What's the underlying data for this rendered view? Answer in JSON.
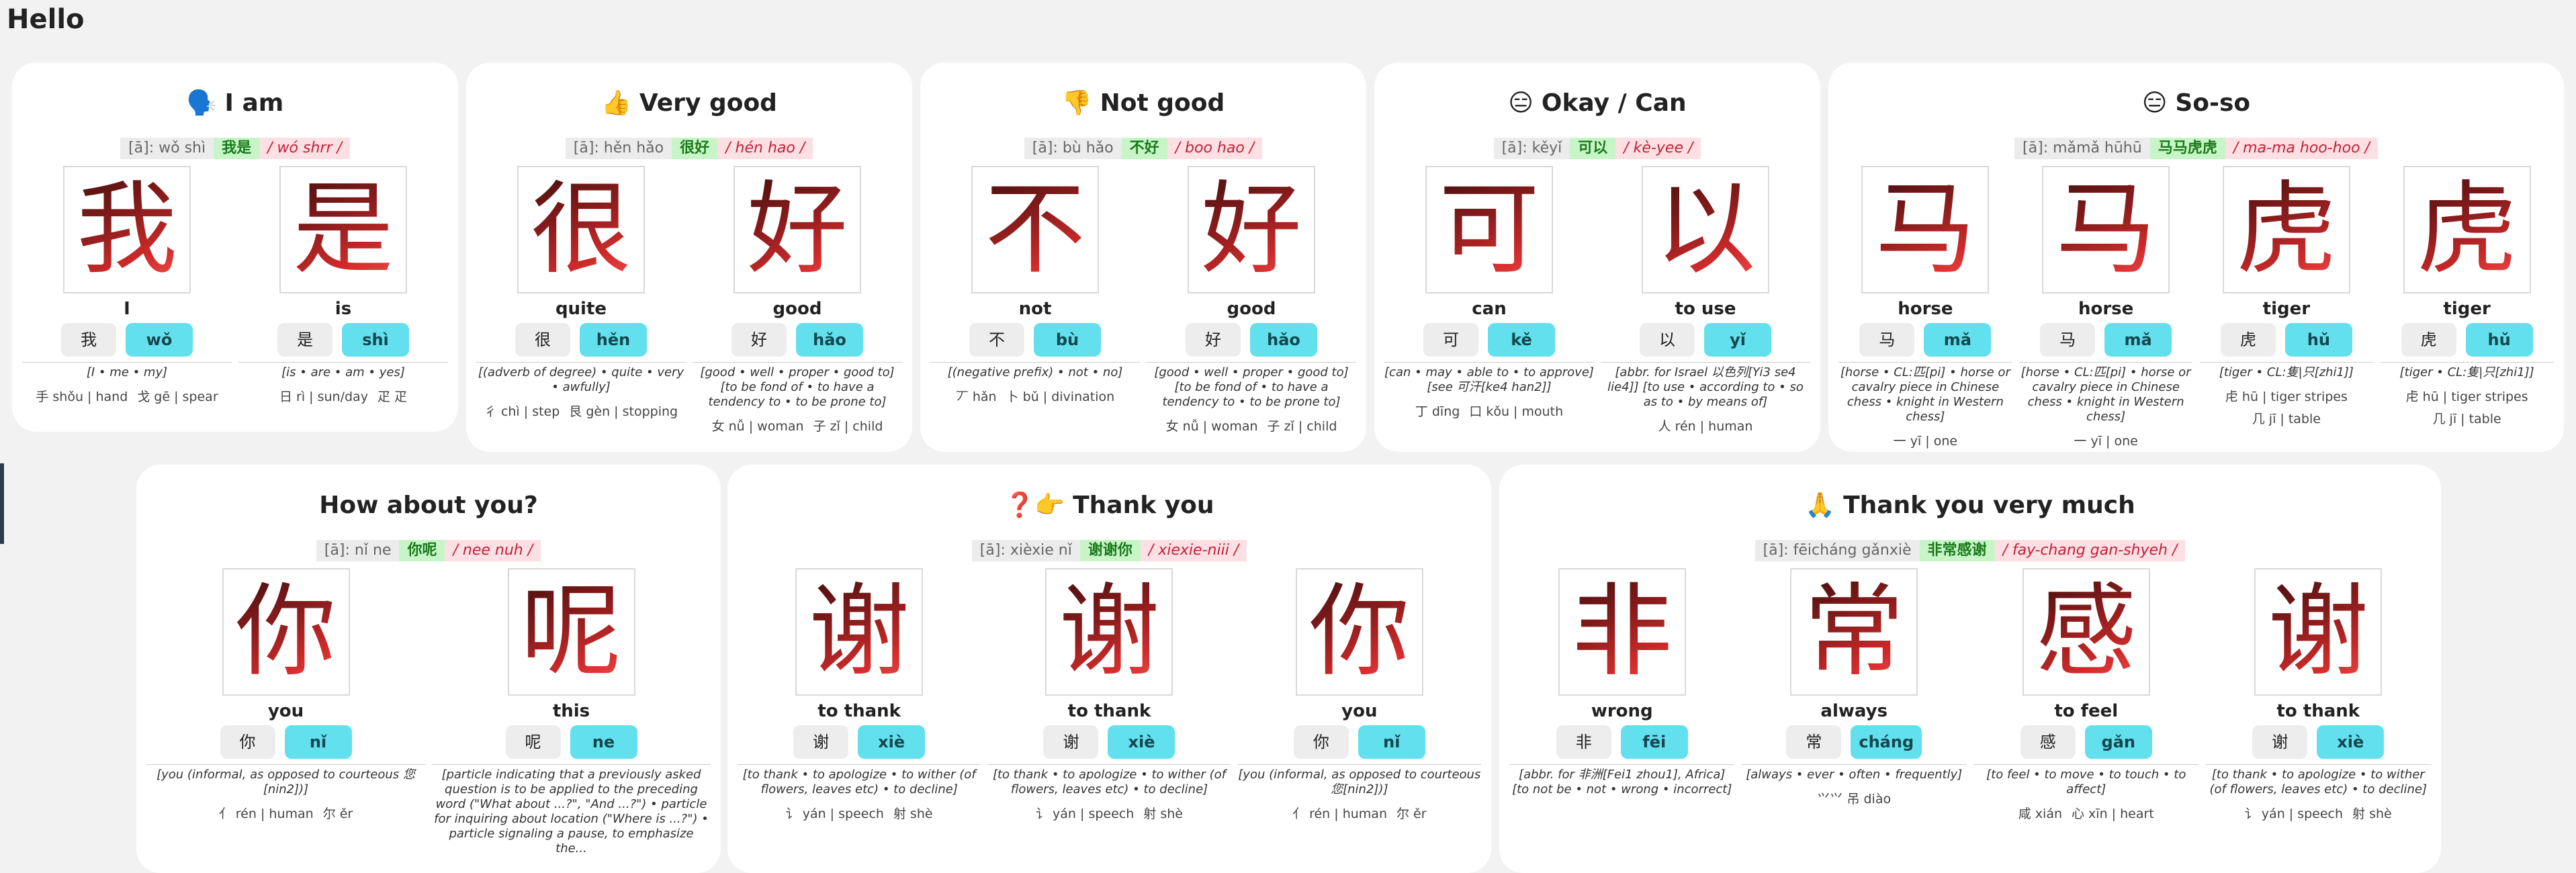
{
  "title": "Hello",
  "cards": [
    {
      "emoji": "🗣️",
      "title": "I am",
      "phrase": {
        "pinyin": "[ā]: wǒ shì",
        "hanzi": "我是",
        "sound": "/ wó shrr /"
      },
      "chars": [
        {
          "hanzi": "我",
          "meaning": "I",
          "pinyin": "wǒ",
          "def": "[I • me • my]",
          "radicals": [
            "手 shǒu | hand",
            "戈 gē | spear"
          ]
        },
        {
          "hanzi": "是",
          "meaning": "is",
          "pinyin": "shì",
          "def": "[is • are • am • yes]",
          "radicals": [
            "日 rì | sun/day",
            "疋 疋"
          ]
        }
      ]
    },
    {
      "emoji": "👍",
      "title": "Very good",
      "phrase": {
        "pinyin": "[ā]: hěn hǎo",
        "hanzi": "很好",
        "sound": "/ hén hao /"
      },
      "chars": [
        {
          "hanzi": "很",
          "meaning": "quite",
          "pinyin": "hěn",
          "def": "[(adverb of degree) • quite • very • awfully]",
          "radicals": [
            "彳 chì | step",
            "艮 gèn | stopping"
          ]
        },
        {
          "hanzi": "好",
          "meaning": "good",
          "pinyin": "hǎo",
          "def": "[good • well • proper • good to] [to be fond of • to have a tendency to • to be prone to]",
          "radicals": [
            "女 nǚ | woman",
            "子 zǐ | child"
          ]
        }
      ]
    },
    {
      "emoji": "👎",
      "title": "Not good",
      "phrase": {
        "pinyin": "[ā]: bù hǎo",
        "hanzi": "不好",
        "sound": "/ boo hao /"
      },
      "chars": [
        {
          "hanzi": "不",
          "meaning": "not",
          "pinyin": "bù",
          "def": "[(negative prefix) • not • no]",
          "radicals": [
            "丆 hǎn",
            "卜 bǔ | divination"
          ]
        },
        {
          "hanzi": "好",
          "meaning": "good",
          "pinyin": "hǎo",
          "def": "[good • well • proper • good to] [to be fond of • to have a tendency to • to be prone to]",
          "radicals": [
            "女 nǚ | woman",
            "子 zǐ | child"
          ]
        }
      ]
    },
    {
      "emoji": "😑",
      "title": "Okay / Can",
      "phrase": {
        "pinyin": "[ā]: kěyǐ",
        "hanzi": "可以",
        "sound": "/ kè-yee /"
      },
      "chars": [
        {
          "hanzi": "可",
          "meaning": "can",
          "pinyin": "kě",
          "def": "[can • may • able to • to approve] [see 可汗[ke4 han2]]",
          "radicals": [
            "丁 dīng",
            "口 kǒu | mouth"
          ]
        },
        {
          "hanzi": "以",
          "meaning": "to use",
          "pinyin": "yǐ",
          "def": "[abbr. for Israel 以色列[Yi3 se4 lie4]] [to use • according to • so as to • by means of]",
          "radicals": [
            "人 rén | human"
          ]
        }
      ]
    },
    {
      "emoji": "😑",
      "title": "So-so",
      "phrase": {
        "pinyin": "[ā]: mǎmǎ hūhū",
        "hanzi": "马马虎虎",
        "sound": "/ ma-ma hoo-hoo /"
      },
      "chars": [
        {
          "hanzi": "马",
          "meaning": "horse",
          "pinyin": "mǎ",
          "def": "[horse • CL:匹[pi] • horse or cavalry piece in Chinese chess • knight in Western chess]",
          "radicals": [
            "一 yī | one"
          ]
        },
        {
          "hanzi": "马",
          "meaning": "horse",
          "pinyin": "mǎ",
          "def": "[horse • CL:匹[pi] • horse or cavalry piece in Chinese chess • knight in Western chess]",
          "radicals": [
            "一 yī | one"
          ]
        },
        {
          "hanzi": "虎",
          "meaning": "tiger",
          "pinyin": "hǔ",
          "def": "[tiger • CL:隻|只[zhi1]]",
          "radicals": [
            "虍 hū | tiger stripes",
            "几 jī | table"
          ]
        },
        {
          "hanzi": "虎",
          "meaning": "tiger",
          "pinyin": "hǔ",
          "def": "[tiger • CL:隻|只[zhi1]]",
          "radicals": [
            "虍 hū | tiger stripes",
            "几 jī | table"
          ]
        }
      ]
    },
    {
      "emoji": "",
      "title": "How about you?",
      "phrase": {
        "pinyin": "[ā]: nǐ ne",
        "hanzi": "你呢",
        "sound": "/ nee nuh /"
      },
      "chars": [
        {
          "hanzi": "你",
          "meaning": "you",
          "pinyin": "nǐ",
          "def": "[you (informal, as opposed to courteous 您[nin2])]",
          "radicals": [
            "亻 rén | human",
            "尔 ěr"
          ]
        },
        {
          "hanzi": "呢",
          "meaning": "this",
          "pinyin": "ne",
          "def": "[particle indicating that a previously asked question is to be applied to the preceding word (\"What about ...?\", \"And ...?\") • particle for inquiring about location (\"Where is ...?\") • particle signaling a pause, to emphasize the...",
          "radicals": []
        }
      ]
    },
    {
      "emoji": "❓👉",
      "title": "Thank you",
      "phrase": {
        "pinyin": "[ā]: xièxie nǐ",
        "hanzi": "谢谢你",
        "sound": "/ xiexie-niii /"
      },
      "chars": [
        {
          "hanzi": "谢",
          "meaning": "to thank",
          "pinyin": "xiè",
          "def": "[to thank • to apologize • to wither (of flowers, leaves etc) • to decline]",
          "radicals": [
            "讠 yán | speech",
            "射 shè"
          ]
        },
        {
          "hanzi": "谢",
          "meaning": "to thank",
          "pinyin": "xiè",
          "def": "[to thank • to apologize • to wither (of flowers, leaves etc) • to decline]",
          "radicals": [
            "讠 yán | speech",
            "射 shè"
          ]
        },
        {
          "hanzi": "你",
          "meaning": "you",
          "pinyin": "nǐ",
          "def": "[you (informal, as opposed to courteous 您[nin2])]",
          "radicals": [
            "亻 rén | human",
            "尔 ěr"
          ]
        }
      ]
    },
    {
      "emoji": "🙏",
      "title": "Thank you very much",
      "phrase": {
        "pinyin": "[ā]: fēicháng gǎnxiè",
        "hanzi": "非常感谢",
        "sound": "/ fay-chang gan-shyeh /"
      },
      "chars": [
        {
          "hanzi": "非",
          "meaning": "wrong",
          "pinyin": "fēi",
          "def": "[abbr. for 非洲[Fei1 zhou1], Africa] [to not be • not • wrong • incorrect]",
          "radicals": []
        },
        {
          "hanzi": "常",
          "meaning": "always",
          "pinyin": "cháng",
          "def": "[always • ever • often • frequently]",
          "radicals": [
            "⺍⺍ 吊 diào"
          ]
        },
        {
          "hanzi": "感",
          "meaning": "to feel",
          "pinyin": "gǎn",
          "def": "[to feel • to move • to touch • to affect]",
          "radicals": [
            "咸 xián",
            "心 xīn | heart"
          ]
        },
        {
          "hanzi": "谢",
          "meaning": "to thank",
          "pinyin": "xiè",
          "def": "[to thank • to apologize • to wither (of flowers, leaves etc) • to decline]",
          "radicals": [
            "讠 yán | speech",
            "射 shè"
          ]
        }
      ]
    }
  ]
}
